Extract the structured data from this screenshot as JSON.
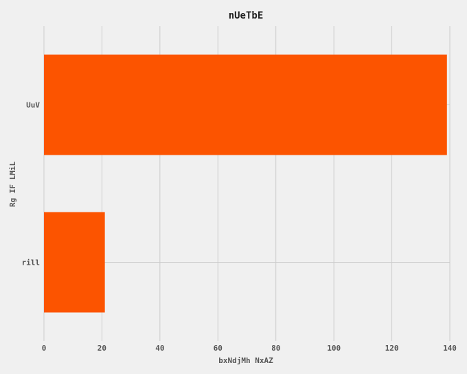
{
  "chart_data": {
    "type": "bar",
    "orientation": "horizontal",
    "title": "nUeTbE",
    "xlabel": "bxNdjMh NxAZ",
    "ylabel": "Rg IF LMiL",
    "categories": [
      "rill",
      "UuV"
    ],
    "values": [
      21,
      139
    ],
    "xlim": [
      0,
      140
    ],
    "xticks": [
      0,
      20,
      40,
      60,
      80,
      100,
      120,
      140
    ],
    "grid": true,
    "bar_color": "#fc5400",
    "background_color": "#f0f0f0",
    "grid_color": "#cbcbcb"
  }
}
